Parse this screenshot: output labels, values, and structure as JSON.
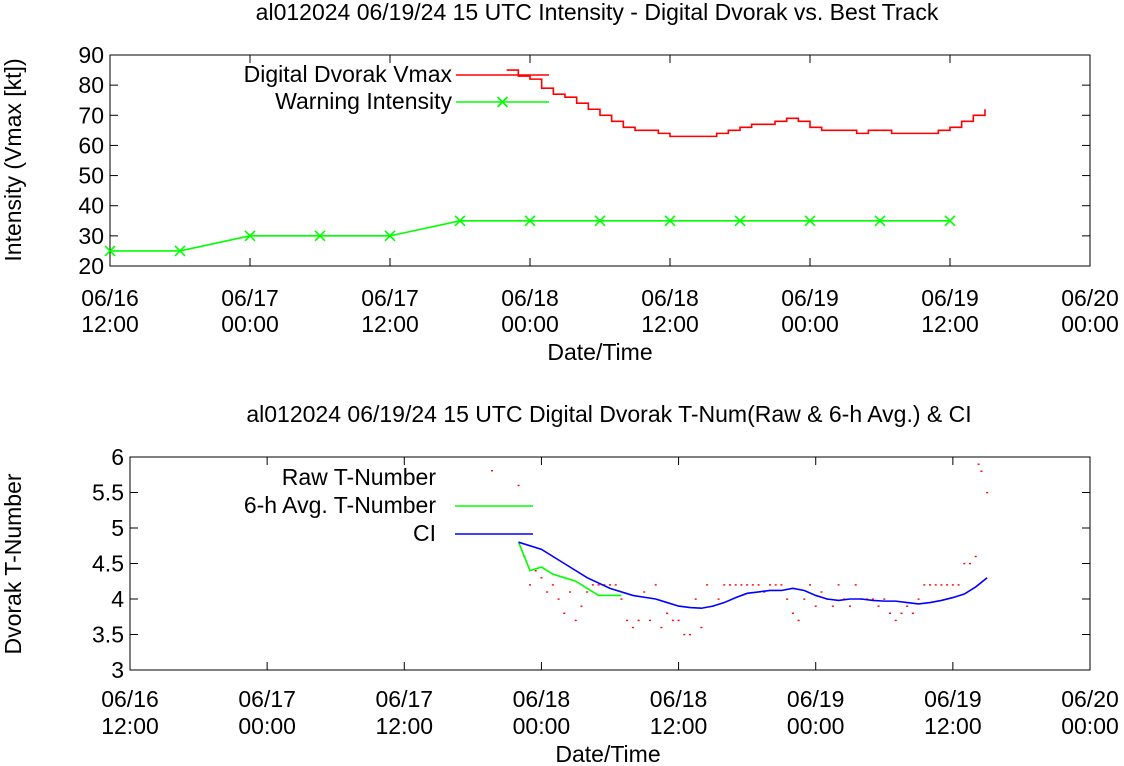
{
  "chart_data": [
    {
      "type": "line",
      "title": "al012024 06/19/24  15 UTC Intensity - Digital Dvorak vs. Best Track",
      "xlabel": "Date/Time",
      "ylabel": "Intensity (Vmax [kt])",
      "xticks": [
        {
          "l1": "06/16",
          "l2": "12:00"
        },
        {
          "l1": "06/17",
          "l2": "00:00"
        },
        {
          "l1": "06/17",
          "l2": "12:00"
        },
        {
          "l1": "06/18",
          "l2": "00:00"
        },
        {
          "l1": "06/18",
          "l2": "12:00"
        },
        {
          "l1": "06/19",
          "l2": "00:00"
        },
        {
          "l1": "06/19",
          "l2": "12:00"
        },
        {
          "l1": "06/20",
          "l2": "00:00"
        }
      ],
      "xlim": [
        "2024-06-16 12:00",
        "2024-06-20 00:00"
      ],
      "ylim": [
        20,
        90
      ],
      "yticks": [
        "20",
        "30",
        "40",
        "50",
        "60",
        "70",
        "80",
        "90"
      ],
      "legend_position": "top-left",
      "series": [
        {
          "name": "Digital Dvorak Vmax",
          "color": "#ff0000",
          "style": "step-line",
          "points": [
            [
              "2024-06-17 22:00",
              85
            ],
            [
              "2024-06-17 23:00",
              83
            ],
            [
              "2024-06-18 00:00",
              82
            ],
            [
              "2024-06-18 01:00",
              79
            ],
            [
              "2024-06-18 02:00",
              77
            ],
            [
              "2024-06-18 03:00",
              76
            ],
            [
              "2024-06-18 04:00",
              74
            ],
            [
              "2024-06-18 05:00",
              72
            ],
            [
              "2024-06-18 06:00",
              70
            ],
            [
              "2024-06-18 07:00",
              68
            ],
            [
              "2024-06-18 08:00",
              66
            ],
            [
              "2024-06-18 09:00",
              65
            ],
            [
              "2024-06-18 10:00",
              65
            ],
            [
              "2024-06-18 11:00",
              64
            ],
            [
              "2024-06-18 12:00",
              63
            ],
            [
              "2024-06-18 13:00",
              63
            ],
            [
              "2024-06-18 14:00",
              63
            ],
            [
              "2024-06-18 15:00",
              63
            ],
            [
              "2024-06-18 16:00",
              64
            ],
            [
              "2024-06-18 17:00",
              65
            ],
            [
              "2024-06-18 18:00",
              66
            ],
            [
              "2024-06-18 19:00",
              67
            ],
            [
              "2024-06-18 20:00",
              67
            ],
            [
              "2024-06-18 21:00",
              68
            ],
            [
              "2024-06-18 22:00",
              69
            ],
            [
              "2024-06-18 23:00",
              68
            ],
            [
              "2024-06-19 00:00",
              66
            ],
            [
              "2024-06-19 01:00",
              65
            ],
            [
              "2024-06-19 02:00",
              65
            ],
            [
              "2024-06-19 03:00",
              65
            ],
            [
              "2024-06-19 04:00",
              64
            ],
            [
              "2024-06-19 05:00",
              65
            ],
            [
              "2024-06-19 06:00",
              65
            ],
            [
              "2024-06-19 07:00",
              64
            ],
            [
              "2024-06-19 08:00",
              64
            ],
            [
              "2024-06-19 09:00",
              64
            ],
            [
              "2024-06-19 10:00",
              64
            ],
            [
              "2024-06-19 11:00",
              65
            ],
            [
              "2024-06-19 12:00",
              66
            ],
            [
              "2024-06-19 13:00",
              68
            ],
            [
              "2024-06-19 14:00",
              70
            ],
            [
              "2024-06-19 15:00",
              72
            ]
          ]
        },
        {
          "name": "Warning Intensity",
          "color": "#00ff00",
          "style": "line-x",
          "points": [
            [
              "2024-06-16 12:00",
              25
            ],
            [
              "2024-06-16 18:00",
              25
            ],
            [
              "2024-06-17 00:00",
              30
            ],
            [
              "2024-06-17 06:00",
              30
            ],
            [
              "2024-06-17 12:00",
              30
            ],
            [
              "2024-06-17 18:00",
              35
            ],
            [
              "2024-06-18 00:00",
              35
            ],
            [
              "2024-06-18 06:00",
              35
            ],
            [
              "2024-06-18 12:00",
              35
            ],
            [
              "2024-06-18 18:00",
              35
            ],
            [
              "2024-06-19 00:00",
              35
            ],
            [
              "2024-06-19 06:00",
              35
            ],
            [
              "2024-06-19 12:00",
              35
            ]
          ]
        }
      ]
    },
    {
      "type": "line",
      "title": "al012024 06/19/24  15 UTC Digital Dvorak T-Num(Raw & 6-h Avg.) & CI",
      "xlabel": "Date/Time",
      "ylabel": "Dvorak T-Number",
      "xticks": [
        {
          "l1": "06/16",
          "l2": "12:00"
        },
        {
          "l1": "06/17",
          "l2": "00:00"
        },
        {
          "l1": "06/17",
          "l2": "12:00"
        },
        {
          "l1": "06/18",
          "l2": "00:00"
        },
        {
          "l1": "06/18",
          "l2": "12:00"
        },
        {
          "l1": "06/19",
          "l2": "00:00"
        },
        {
          "l1": "06/19",
          "l2": "12:00"
        },
        {
          "l1": "06/20",
          "l2": "00:00"
        }
      ],
      "xlim": [
        "2024-06-16 12:00",
        "2024-06-20 00:00"
      ],
      "ylim": [
        3,
        6
      ],
      "yticks": [
        "3",
        "3.5",
        "4",
        "4.5",
        "5",
        "5.5",
        "6"
      ],
      "legend_position": "top-left",
      "series": [
        {
          "name": "Raw T-Number",
          "color": "#ff0000",
          "style": "points",
          "points": [
            [
              "2024-06-17 22:00",
              5.6
            ],
            [
              "2024-06-17 22:30",
              4.6
            ],
            [
              "2024-06-17 23:00",
              4.2
            ],
            [
              "2024-06-17 23:30",
              4.4
            ],
            [
              "2024-06-18 00:00",
              4.3
            ],
            [
              "2024-06-18 00:30",
              4.1
            ],
            [
              "2024-06-18 01:00",
              4.2
            ],
            [
              "2024-06-18 01:30",
              4.0
            ],
            [
              "2024-06-18 02:00",
              3.8
            ],
            [
              "2024-06-18 02:30",
              4.1
            ],
            [
              "2024-06-18 03:00",
              3.7
            ],
            [
              "2024-06-18 03:30",
              3.9
            ],
            [
              "2024-06-18 04:00",
              4.1
            ],
            [
              "2024-06-18 04:30",
              4.2
            ],
            [
              "2024-06-18 05:00",
              4.2
            ],
            [
              "2024-06-18 05:30",
              4.2
            ],
            [
              "2024-06-18 06:00",
              4.2
            ],
            [
              "2024-06-18 06:30",
              4.2
            ],
            [
              "2024-06-18 07:00",
              4.0
            ],
            [
              "2024-06-18 07:30",
              3.7
            ],
            [
              "2024-06-18 08:00",
              3.6
            ],
            [
              "2024-06-18 08:30",
              3.7
            ],
            [
              "2024-06-18 09:00",
              4.1
            ],
            [
              "2024-06-18 09:30",
              3.7
            ],
            [
              "2024-06-18 10:00",
              4.2
            ],
            [
              "2024-06-18 10:30",
              3.6
            ],
            [
              "2024-06-18 11:00",
              3.8
            ],
            [
              "2024-06-18 11:30",
              3.7
            ],
            [
              "2024-06-18 12:00",
              3.7
            ],
            [
              "2024-06-18 12:30",
              3.5
            ],
            [
              "2024-06-18 13:00",
              3.5
            ],
            [
              "2024-06-18 13:30",
              4.0
            ],
            [
              "2024-06-18 14:00",
              3.6
            ],
            [
              "2024-06-18 14:30",
              4.2
            ],
            [
              "2024-06-18 15:00",
              3.9
            ],
            [
              "2024-06-18 15:30",
              4.0
            ],
            [
              "2024-06-18 16:00",
              4.2
            ],
            [
              "2024-06-18 16:30",
              4.2
            ],
            [
              "2024-06-18 17:00",
              4.2
            ],
            [
              "2024-06-18 17:30",
              4.2
            ],
            [
              "2024-06-18 18:00",
              4.2
            ],
            [
              "2024-06-18 18:30",
              4.2
            ],
            [
              "2024-06-18 19:00",
              4.2
            ],
            [
              "2024-06-18 19:30",
              4.1
            ],
            [
              "2024-06-18 20:00",
              4.2
            ],
            [
              "2024-06-18 20:30",
              4.2
            ],
            [
              "2024-06-18 21:00",
              4.2
            ],
            [
              "2024-06-18 21:30",
              4.0
            ],
            [
              "2024-06-18 22:00",
              3.8
            ],
            [
              "2024-06-18 22:30",
              3.7
            ],
            [
              "2024-06-18 23:00",
              4.0
            ],
            [
              "2024-06-18 23:30",
              4.2
            ],
            [
              "2024-06-19 00:00",
              3.9
            ],
            [
              "2024-06-19 00:30",
              4.1
            ],
            [
              "2024-06-19 01:00",
              4.0
            ],
            [
              "2024-06-19 01:30",
              3.9
            ],
            [
              "2024-06-19 02:00",
              4.2
            ],
            [
              "2024-06-19 02:30",
              4.0
            ],
            [
              "2024-06-19 03:00",
              3.9
            ],
            [
              "2024-06-19 03:30",
              4.2
            ],
            [
              "2024-06-19 04:00",
              4.0
            ],
            [
              "2024-06-19 04:30",
              4.0
            ],
            [
              "2024-06-19 05:00",
              4.0
            ],
            [
              "2024-06-19 05:30",
              3.9
            ],
            [
              "2024-06-19 06:00",
              4.0
            ],
            [
              "2024-06-19 06:30",
              3.8
            ],
            [
              "2024-06-19 07:00",
              3.7
            ],
            [
              "2024-06-19 07:30",
              3.8
            ],
            [
              "2024-06-19 08:00",
              3.9
            ],
            [
              "2024-06-19 08:30",
              3.8
            ],
            [
              "2024-06-19 09:00",
              4.0
            ],
            [
              "2024-06-19 09:30",
              4.2
            ],
            [
              "2024-06-19 10:00",
              4.2
            ],
            [
              "2024-06-19 10:30",
              4.2
            ],
            [
              "2024-06-19 11:00",
              4.2
            ],
            [
              "2024-06-19 11:30",
              4.2
            ],
            [
              "2024-06-19 12:00",
              4.2
            ],
            [
              "2024-06-19 12:30",
              4.2
            ],
            [
              "2024-06-19 13:00",
              4.5
            ],
            [
              "2024-06-19 13:30",
              4.5
            ],
            [
              "2024-06-19 14:00",
              4.6
            ],
            [
              "2024-06-19 14:15",
              5.9
            ],
            [
              "2024-06-19 14:30",
              5.8
            ],
            [
              "2024-06-19 15:00",
              5.5
            ]
          ]
        },
        {
          "name": "6-h Avg. T-Number",
          "color": "#00ff00",
          "style": "line",
          "points": [
            [
              "2024-06-17 22:00",
              4.8
            ],
            [
              "2024-06-17 23:00",
              4.4
            ],
            [
              "2024-06-18 00:00",
              4.45
            ],
            [
              "2024-06-18 01:00",
              4.35
            ],
            [
              "2024-06-18 02:00",
              4.3
            ],
            [
              "2024-06-18 03:00",
              4.25
            ],
            [
              "2024-06-18 04:00",
              4.15
            ],
            [
              "2024-06-18 05:00",
              4.05
            ],
            [
              "2024-06-18 06:00",
              4.05
            ],
            [
              "2024-06-18 07:00",
              4.05
            ]
          ]
        },
        {
          "name": "CI",
          "color": "#0000ff",
          "style": "line",
          "points": [
            [
              "2024-06-17 22:00",
              4.8
            ],
            [
              "2024-06-18 00:00",
              4.7
            ],
            [
              "2024-06-18 02:00",
              4.5
            ],
            [
              "2024-06-18 04:00",
              4.3
            ],
            [
              "2024-06-18 06:00",
              4.15
            ],
            [
              "2024-06-18 08:00",
              4.05
            ],
            [
              "2024-06-18 10:00",
              4.0
            ],
            [
              "2024-06-18 11:00",
              3.95
            ],
            [
              "2024-06-18 12:00",
              3.9
            ],
            [
              "2024-06-18 13:00",
              3.88
            ],
            [
              "2024-06-18 14:00",
              3.87
            ],
            [
              "2024-06-18 15:00",
              3.9
            ],
            [
              "2024-06-18 16:00",
              3.95
            ],
            [
              "2024-06-18 17:00",
              4.02
            ],
            [
              "2024-06-18 18:00",
              4.08
            ],
            [
              "2024-06-18 19:00",
              4.1
            ],
            [
              "2024-06-18 20:00",
              4.12
            ],
            [
              "2024-06-18 21:00",
              4.12
            ],
            [
              "2024-06-18 22:00",
              4.15
            ],
            [
              "2024-06-18 23:00",
              4.12
            ],
            [
              "2024-06-19 00:00",
              4.05
            ],
            [
              "2024-06-19 01:00",
              4.0
            ],
            [
              "2024-06-19 02:00",
              3.98
            ],
            [
              "2024-06-19 03:00",
              4.0
            ],
            [
              "2024-06-19 04:00",
              4.0
            ],
            [
              "2024-06-19 05:00",
              3.98
            ],
            [
              "2024-06-19 06:00",
              3.97
            ],
            [
              "2024-06-19 07:00",
              3.97
            ],
            [
              "2024-06-19 08:00",
              3.95
            ],
            [
              "2024-06-19 09:00",
              3.93
            ],
            [
              "2024-06-19 10:00",
              3.95
            ],
            [
              "2024-06-19 11:00",
              3.98
            ],
            [
              "2024-06-19 12:00",
              4.02
            ],
            [
              "2024-06-19 13:00",
              4.07
            ],
            [
              "2024-06-19 14:00",
              4.17
            ],
            [
              "2024-06-19 15:00",
              4.3
            ]
          ]
        }
      ]
    }
  ]
}
